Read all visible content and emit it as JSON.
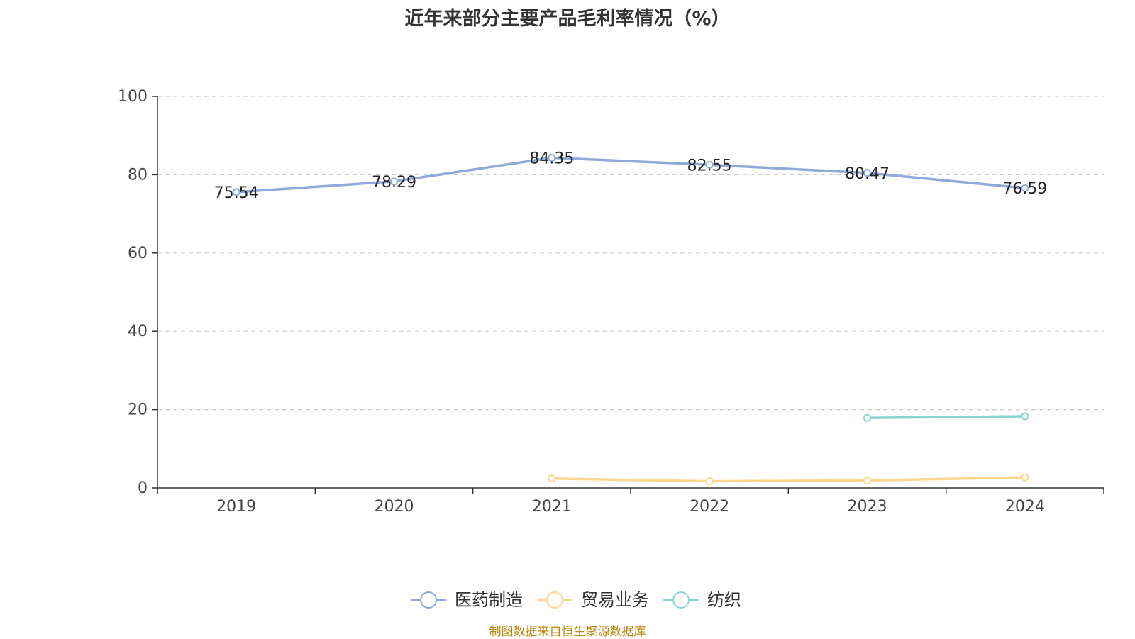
{
  "chart_data": {
    "type": "line",
    "title": "近年来部分主要产品毛利率情况（%）",
    "xlabel": "",
    "ylabel": "",
    "categories": [
      "2019",
      "2020",
      "2021",
      "2022",
      "2023",
      "2024"
    ],
    "ylim": [
      0,
      100
    ],
    "yticks": [
      0,
      20,
      40,
      60,
      80,
      100
    ],
    "grid": true,
    "legend_position": "bottom",
    "series": [
      {
        "name": "医药制造",
        "color": "#8eaad8",
        "show_labels": true,
        "values": [
          75.54,
          78.29,
          84.35,
          82.55,
          80.47,
          76.59
        ]
      },
      {
        "name": "贸易业务",
        "color": "#f9d88e",
        "show_labels": false,
        "values": [
          null,
          null,
          2.4,
          1.7,
          1.9,
          2.7
        ]
      },
      {
        "name": "纺织",
        "color": "#88d4d1",
        "show_labels": false,
        "values": [
          null,
          null,
          null,
          null,
          17.9,
          18.3
        ]
      }
    ]
  },
  "footer": {
    "source": "制图数据来自恒生聚源数据库"
  }
}
